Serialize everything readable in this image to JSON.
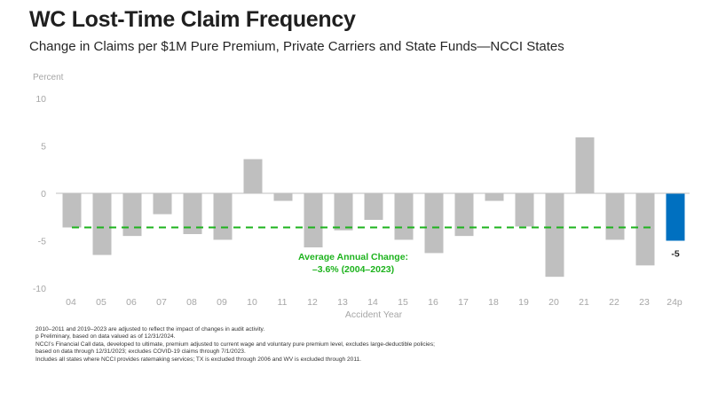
{
  "header": {
    "title": "WC Lost-Time Claim Frequency",
    "subtitle": "Change in Claims per $1M Pure Premium, Private Carriers and State Funds—NCCI States"
  },
  "chart_data": {
    "type": "bar",
    "title": "WC Lost-Time Claim Frequency",
    "subtitle": "Change in Claims per $1M Pure Premium, Private Carriers and State Funds—NCCI States",
    "ylabel": "Percent",
    "xlabel": "Accident Year",
    "ylim": [
      -10,
      10
    ],
    "yticks": [
      10,
      5,
      0,
      -5,
      -10
    ],
    "ytick_labels": [
      "10",
      "5",
      "0",
      "-5",
      "-10"
    ],
    "grid": false,
    "categories": [
      "04",
      "05",
      "06",
      "07",
      "08",
      "09",
      "10",
      "11",
      "12",
      "13",
      "14",
      "15",
      "16",
      "17",
      "18",
      "19",
      "20",
      "21",
      "22",
      "23",
      "24p"
    ],
    "values": [
      -3.6,
      -6.5,
      -4.5,
      -2.2,
      -4.3,
      -4.9,
      3.6,
      -0.8,
      -5.7,
      -3.9,
      -2.8,
      -4.9,
      -6.3,
      -4.5,
      -0.8,
      -3.5,
      -8.8,
      5.9,
      -4.9,
      -7.6,
      -5.0
    ],
    "highlight_index": 20,
    "highlight_label": "-5",
    "average_line": {
      "value": -3.6,
      "label_line1": "Average Annual Change:",
      "label_line2": "–3.6% (2004–2023)",
      "from_category": "04",
      "to_category": "23"
    },
    "colors": {
      "bar": "#BFBFBF",
      "highlight": "#0070C0",
      "average": "#1DB31D",
      "axis": "#BFBFBF",
      "tick_text": "#A6A6A6"
    }
  },
  "footnotes": [
    "2010–2011 and 2019–2023 are adjusted to reflect the impact of changes in audit activity.",
    "p Preliminary, based on data valued as of 12/31/2024.",
    "NCCI’s Financial Call data, developed to ultimate, premium adjusted to current wage and voluntary pure premium level, excludes large-deductible policies;",
    "based on data through 12/31/2023; excludes COVID-19 claims through 7/1/2023.",
    "Includes all states where NCCI provides ratemaking services; TX is excluded through 2006 and WV is excluded through 2011."
  ]
}
